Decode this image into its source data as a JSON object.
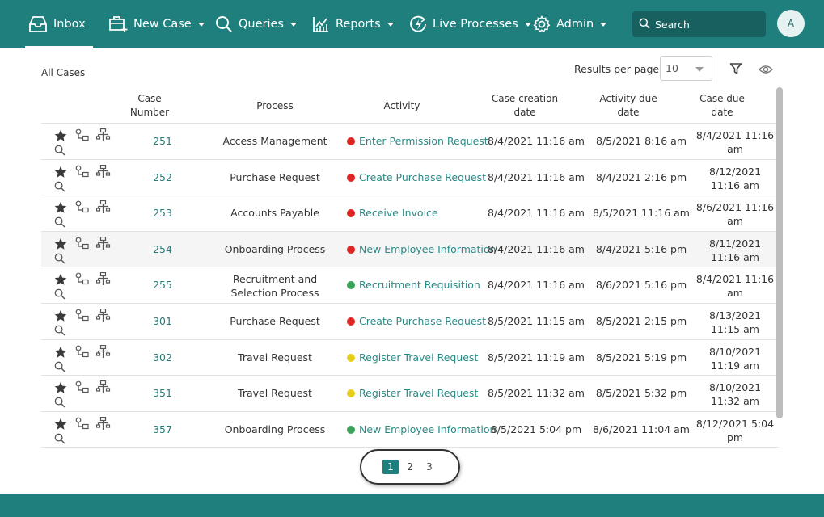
{
  "nav": {
    "inbox": "Inbox",
    "new_case": "New Case",
    "queries": "Queries",
    "reports": "Reports",
    "live_processes": "Live Processes",
    "admin": "Admin",
    "search_placeholder": "Search",
    "avatar_initial": "A"
  },
  "toolbar": {
    "section_title": "All Cases",
    "results_per_page_label": "Results per page",
    "results_per_page_value": "10"
  },
  "table": {
    "headers": {
      "case_number": "Case Number",
      "process": "Process",
      "activity": "Activity",
      "case_creation_date": "Case creation date",
      "activity_due_date": "Activity due date",
      "case_due_date": "Case due date"
    },
    "status_colors": {
      "red": "#e02424",
      "green": "#3aa35a",
      "yellow": "#e6cf1a"
    },
    "rows": [
      {
        "num": "251",
        "process": "Access Management",
        "activity": "Enter Permission Request",
        "status": "red",
        "created": "8/4/2021 11:16 am",
        "activity_due": "8/5/2021 8:16 am",
        "case_due": "8/4/2021 11:16 am"
      },
      {
        "num": "252",
        "process": "Purchase Request",
        "activity": "Create Purchase Request",
        "status": "red",
        "created": "8/4/2021 11:16 am",
        "activity_due": "8/4/2021 2:16 pm",
        "case_due": "8/12/2021 11:16 am"
      },
      {
        "num": "253",
        "process": "Accounts Payable",
        "activity": "Receive Invoice",
        "status": "red",
        "created": "8/4/2021 11:16 am",
        "activity_due": "8/5/2021 11:16 am",
        "case_due": "8/6/2021 11:16 am"
      },
      {
        "num": "254",
        "process": "Onboarding Process",
        "activity": "New Employee Information",
        "status": "red",
        "created": "8/4/2021 11:16 am",
        "activity_due": "8/4/2021 5:16 pm",
        "case_due": "8/11/2021 11:16 am"
      },
      {
        "num": "255",
        "process": "Recruitment and Selection Process",
        "activity": "Recruitment Requisition",
        "status": "green",
        "created": "8/4/2021 11:16 am",
        "activity_due": "8/6/2021 5:16 pm",
        "case_due": "8/4/2021 11:16 am"
      },
      {
        "num": "301",
        "process": "Purchase Request",
        "activity": "Create Purchase Request",
        "status": "red",
        "created": "8/5/2021 11:15 am",
        "activity_due": "8/5/2021 2:15 pm",
        "case_due": "8/13/2021 11:15 am"
      },
      {
        "num": "302",
        "process": "Travel Request",
        "activity": "Register Travel Request",
        "status": "yellow",
        "created": "8/5/2021 11:19 am",
        "activity_due": "8/5/2021 5:19 pm",
        "case_due": "8/10/2021 11:19 am"
      },
      {
        "num": "351",
        "process": "Travel Request",
        "activity": "Register Travel Request",
        "status": "yellow",
        "created": "8/5/2021 11:32 am",
        "activity_due": "8/5/2021 5:32 pm",
        "case_due": "8/10/2021 11:32 am"
      },
      {
        "num": "357",
        "process": "Onboarding Process",
        "activity": "New Employee Information",
        "status": "green",
        "created": "8/5/2021 5:04 pm",
        "activity_due": "8/6/2021 11:04 am",
        "case_due": "8/12/2021 5:04 pm"
      }
    ]
  },
  "pagination": {
    "pages": [
      "1",
      "2",
      "3"
    ],
    "current": "1"
  },
  "icons": {
    "nav": [
      "inbox-icon",
      "new-case-icon",
      "search-icon",
      "reports-icon",
      "live-processes-icon",
      "gear-icon"
    ],
    "row": [
      "star-icon",
      "history-icon",
      "flow-icon",
      "magnify-icon"
    ],
    "toolbar": [
      "filter-icon",
      "eye-icon"
    ]
  }
}
